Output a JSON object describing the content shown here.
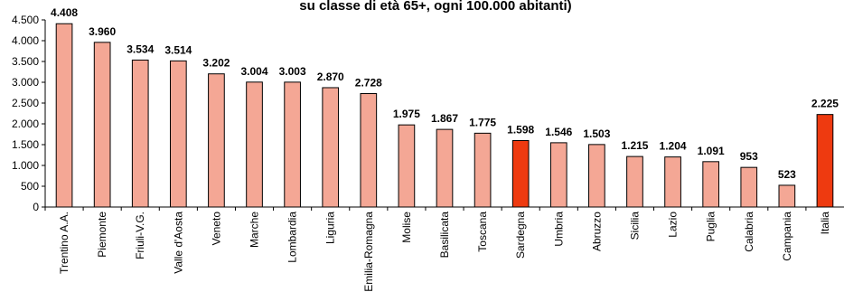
{
  "chart_data": {
    "type": "bar",
    "title": "su classe di età 65+, ogni 100.000 abitanti)",
    "categories": [
      "Trentino A.A.",
      "Piemonte",
      "Friuli-V.G.",
      "Valle d'Aosta",
      "Veneto",
      "Marche",
      "Lombardia",
      "Liguria",
      "Emilia-Romagna",
      "Molise",
      "Basilicata",
      "Toscana",
      "Sardegna",
      "Umbria",
      "Abruzzo",
      "Sicilia",
      "Lazio",
      "Puglia",
      "Calabria",
      "Campania",
      "Italia"
    ],
    "values": [
      4408,
      3960,
      3534,
      3514,
      3202,
      3004,
      3003,
      2870,
      2728,
      1975,
      1867,
      1775,
      1598,
      1546,
      1503,
      1215,
      1204,
      1091,
      953,
      523,
      2225
    ],
    "value_labels": [
      "4.408",
      "3.960",
      "3.534",
      "3.514",
      "3.202",
      "3.004",
      "3.003",
      "2.870",
      "2.728",
      "1.975",
      "1.867",
      "1.775",
      "1.598",
      "1.546",
      "1.503",
      "1.215",
      "1.204",
      "1.091",
      "953",
      "523",
      "2.225"
    ],
    "highlighted": [
      "Sardegna",
      "Italia"
    ],
    "ylim": [
      0,
      4500
    ],
    "yticks": [
      0,
      500,
      1000,
      1500,
      2000,
      2500,
      3000,
      3500,
      4000,
      4500
    ],
    "ytick_labels": [
      "0",
      "500",
      "1.000",
      "1.500",
      "2.000",
      "2.500",
      "3.000",
      "3.500",
      "4.000",
      "4.500"
    ],
    "grid": false,
    "colors": {
      "bar": "#f4a795",
      "highlight": "#ee3a10",
      "stroke": "#000000"
    }
  }
}
